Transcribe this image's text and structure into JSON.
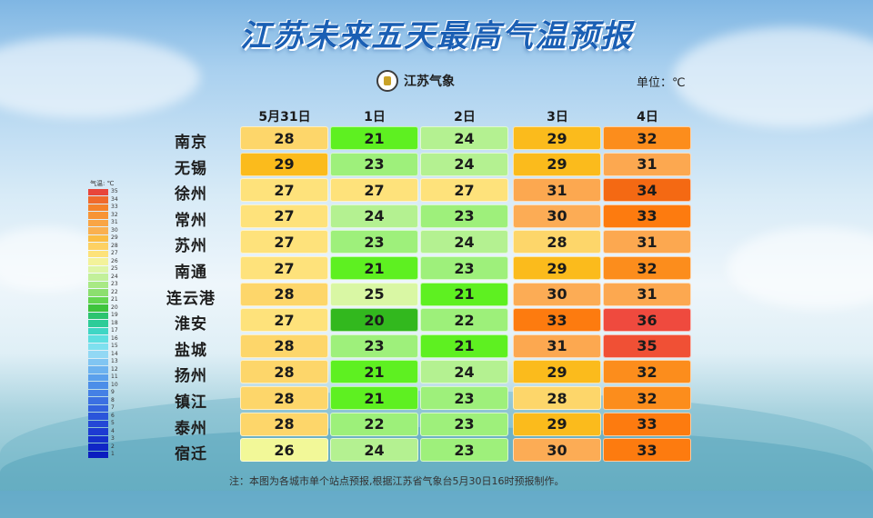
{
  "title": "江苏未来五天最高气温预报",
  "logo_text": "江苏气象",
  "unit": "单位：℃",
  "legend": {
    "header": "气温: ℃",
    "entries": [
      {
        "label": "35",
        "color": "#e8453b"
      },
      {
        "label": "34",
        "color": "#f06a2c"
      },
      {
        "label": "33",
        "color": "#f5822a"
      },
      {
        "label": "32",
        "color": "#f79436"
      },
      {
        "label": "31",
        "color": "#f9a545"
      },
      {
        "label": "30",
        "color": "#fab050"
      },
      {
        "label": "29",
        "color": "#fbbd43"
      },
      {
        "label": "28",
        "color": "#fdd163"
      },
      {
        "label": "27",
        "color": "#fde27a"
      },
      {
        "label": "26",
        "color": "#f3f29a"
      },
      {
        "label": "25",
        "color": "#def5a6"
      },
      {
        "label": "24",
        "color": "#c2f09a"
      },
      {
        "label": "23",
        "color": "#a8e985"
      },
      {
        "label": "22",
        "color": "#8cdf6f"
      },
      {
        "label": "21",
        "color": "#64d650"
      },
      {
        "label": "20",
        "color": "#3ec43c"
      },
      {
        "label": "19",
        "color": "#2cc46f"
      },
      {
        "label": "18",
        "color": "#2dcc98"
      },
      {
        "label": "17",
        "color": "#3fd6c4"
      },
      {
        "label": "16",
        "color": "#5edfe0"
      },
      {
        "label": "15",
        "color": "#7ee0ef"
      },
      {
        "label": "14",
        "color": "#92d8f4"
      },
      {
        "label": "13",
        "color": "#80c5f2"
      },
      {
        "label": "12",
        "color": "#6cb2ef"
      },
      {
        "label": "11",
        "color": "#5aa0ec"
      },
      {
        "label": "10",
        "color": "#4c8ee8"
      },
      {
        "label": "9",
        "color": "#4480e5"
      },
      {
        "label": "8",
        "color": "#3b70e2"
      },
      {
        "label": "7",
        "color": "#3362de"
      },
      {
        "label": "6",
        "color": "#2b55da"
      },
      {
        "label": "5",
        "color": "#2448d6"
      },
      {
        "label": "4",
        "color": "#1d3bd2"
      },
      {
        "label": "3",
        "color": "#1630cc"
      },
      {
        "label": "2",
        "color": "#1026c6"
      },
      {
        "label": "1",
        "color": "#0b1dbf"
      }
    ]
  },
  "days": [
    "5月31日",
    "1日",
    "2日",
    "3日",
    "4日"
  ],
  "rows": [
    {
      "city": "南京",
      "temps": [
        28,
        21,
        24,
        29,
        32
      ]
    },
    {
      "city": "无锡",
      "temps": [
        29,
        23,
        24,
        29,
        31
      ]
    },
    {
      "city": "徐州",
      "temps": [
        27,
        27,
        27,
        31,
        34
      ]
    },
    {
      "city": "常州",
      "temps": [
        27,
        24,
        23,
        30,
        33
      ]
    },
    {
      "city": "苏州",
      "temps": [
        27,
        23,
        24,
        28,
        31
      ]
    },
    {
      "city": "南通",
      "temps": [
        27,
        21,
        23,
        29,
        32
      ]
    },
    {
      "city": "连云港",
      "temps": [
        28,
        25,
        21,
        30,
        31
      ]
    },
    {
      "city": "淮安",
      "temps": [
        27,
        20,
        22,
        33,
        36
      ]
    },
    {
      "city": "盐城",
      "temps": [
        28,
        23,
        21,
        31,
        35
      ]
    },
    {
      "city": "扬州",
      "temps": [
        28,
        21,
        24,
        29,
        32
      ]
    },
    {
      "city": "镇江",
      "temps": [
        28,
        21,
        23,
        28,
        32
      ]
    },
    {
      "city": "泰州",
      "temps": [
        28,
        22,
        23,
        29,
        33
      ]
    },
    {
      "city": "宿迁",
      "temps": [
        26,
        24,
        23,
        30,
        33
      ]
    }
  ],
  "temp_colors": {
    "20": "#32b81e",
    "21": "#5ef021",
    "22": "#9df07a",
    "23": "#9ef07b",
    "24": "#b4f191",
    "25": "#d9f7a4",
    "26": "#f2f898",
    "27": "#fee27b",
    "28": "#fdd66a",
    "29": "#fbbb1c",
    "30": "#fcac55",
    "31": "#fca850",
    "32": "#fc8d1c",
    "33": "#fd7b0f",
    "34": "#f46913",
    "35": "#f05035",
    "36": "#ef4a3e"
  },
  "note": "注：本图为各城市单个站点预报,根据江苏省气象台5月30日16时预报制作。"
}
